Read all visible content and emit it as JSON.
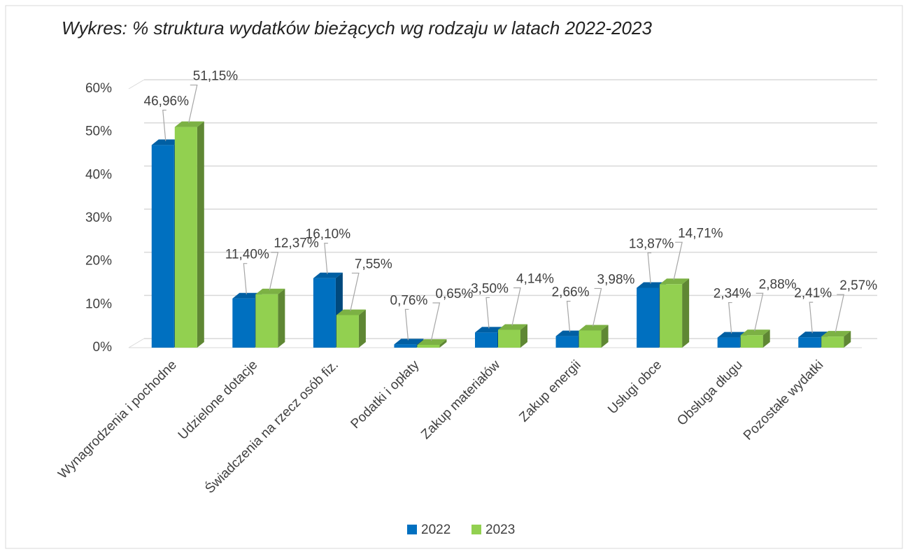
{
  "chart_data": {
    "type": "bar3d",
    "title": "Wykres: % struktura wydatków bieżących wg rodzaju w latach 2022-2023",
    "categories": [
      "Wynagrodzenia i pochodne",
      "Udzielone dotacje",
      "Świadczenia na rzecz osób fiz.",
      "Podatki i opłaty",
      "Zakup materiałów",
      "Zakup energii",
      "Usługi obce",
      "Obsługa długu",
      "Pozostałe wydatki"
    ],
    "series": [
      {
        "name": "2022",
        "color": "#0070c0",
        "values": [
          46.96,
          11.4,
          16.1,
          0.76,
          3.5,
          2.66,
          13.87,
          2.34,
          2.41
        ],
        "value_labels": [
          "46,96%",
          "11,40%",
          "16,10%",
          "0,76%",
          "3,50%",
          "2,66%",
          "13,87%",
          "2,34%",
          "2,41%"
        ]
      },
      {
        "name": "2023",
        "color": "#92d050",
        "values": [
          51.15,
          12.37,
          7.55,
          0.65,
          4.14,
          3.98,
          14.71,
          2.88,
          2.57
        ],
        "value_labels": [
          "51,15%",
          "12,37%",
          "7,55%",
          "0,65%",
          "4,14%",
          "3,98%",
          "14,71%",
          "2,88%",
          "2,57%"
        ]
      }
    ],
    "ylim": [
      0,
      60
    ],
    "yticks": [
      {
        "value": 0,
        "label": "0%"
      },
      {
        "value": 10,
        "label": "10%"
      },
      {
        "value": 20,
        "label": "20%"
      },
      {
        "value": 30,
        "label": "30%"
      },
      {
        "value": 40,
        "label": "40%"
      },
      {
        "value": 50,
        "label": "50%"
      },
      {
        "value": 60,
        "label": "60%"
      }
    ],
    "grid": true,
    "legend": "bottom"
  }
}
